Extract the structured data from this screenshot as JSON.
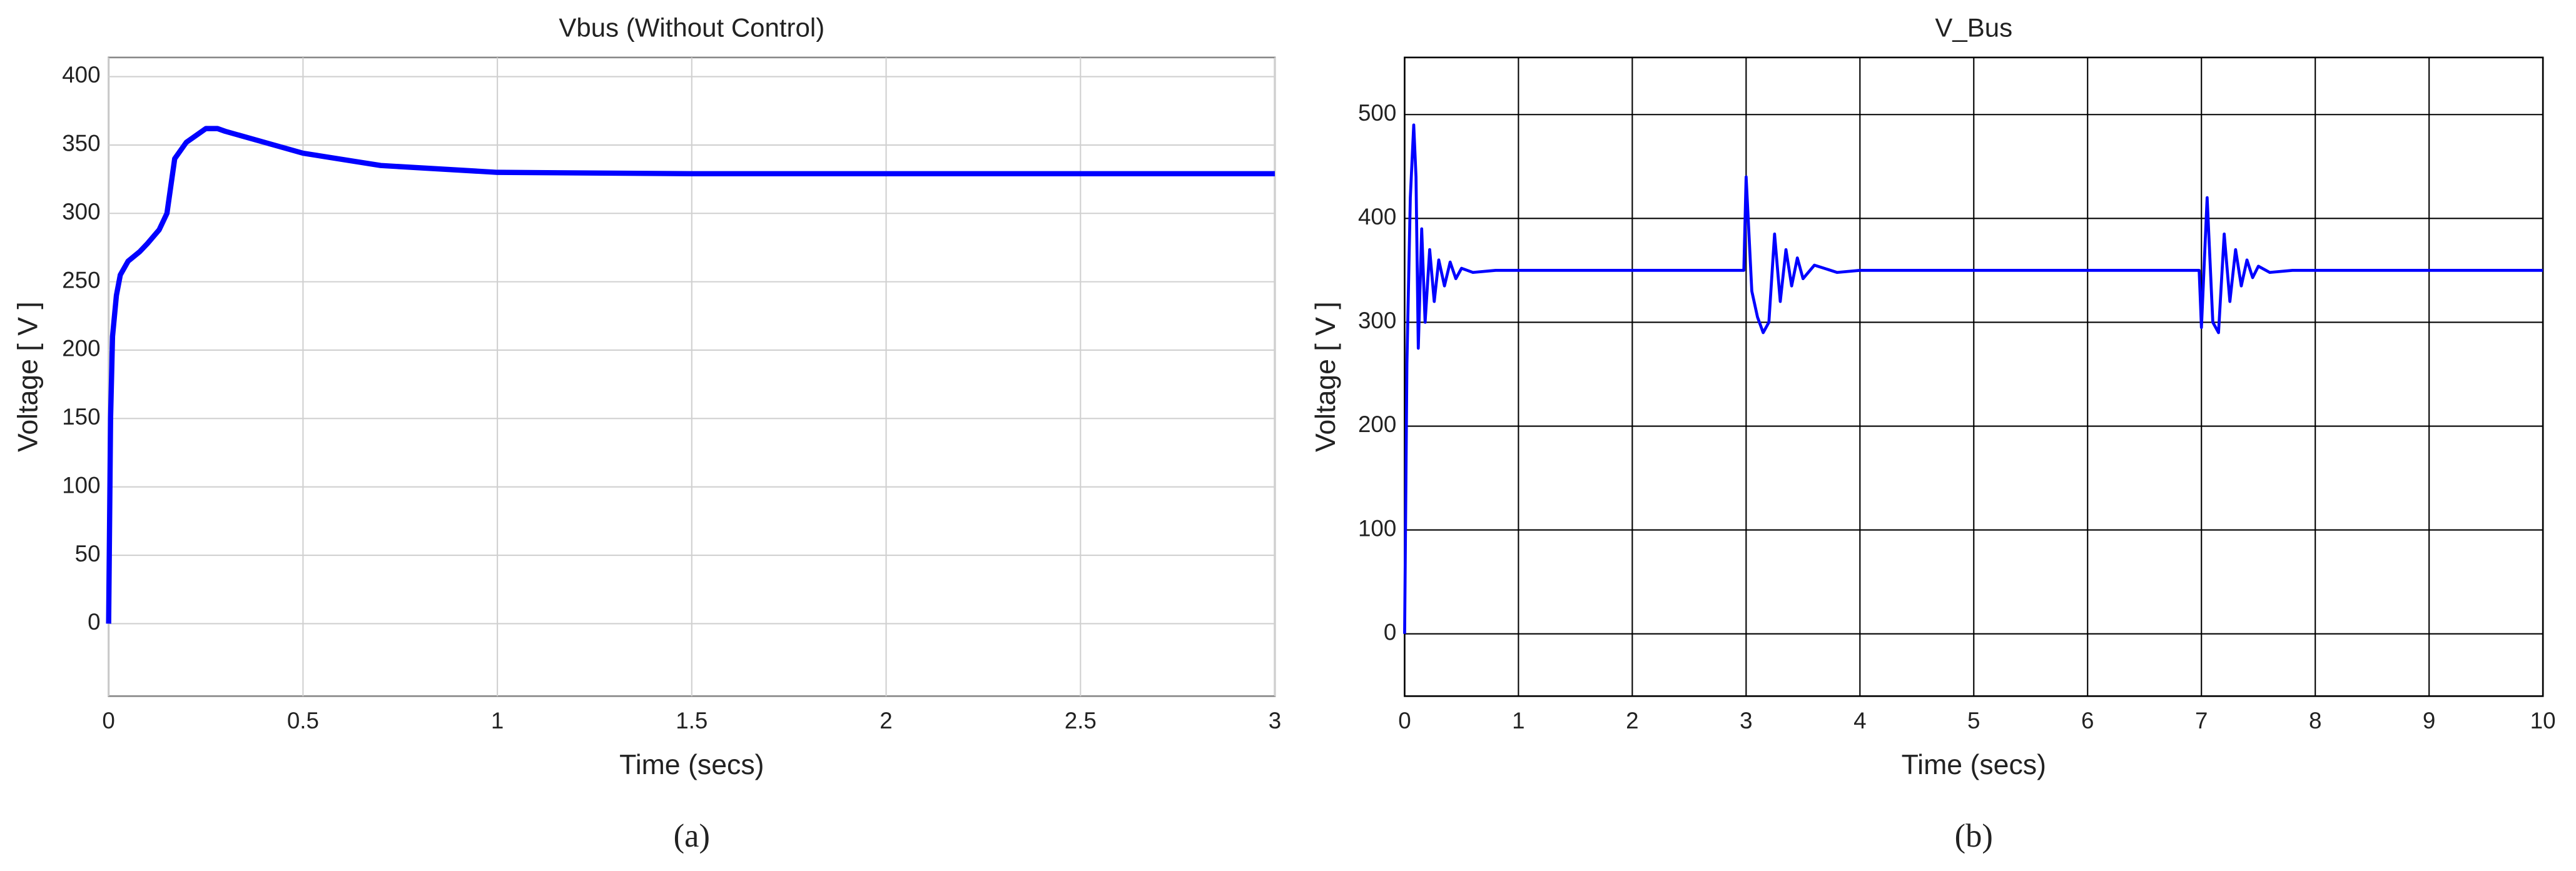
{
  "chart_data": [
    {
      "type": "line",
      "title": "Vbus (Without Control)",
      "xlabel": "Time (secs)",
      "ylabel": "Voltage [ V ]",
      "caption": "(a)",
      "x": [
        0,
        0.005,
        0.01,
        0.02,
        0.03,
        0.05,
        0.08,
        0.1,
        0.13,
        0.15,
        0.17,
        0.2,
        0.25,
        0.28,
        0.3,
        0.4,
        0.5,
        0.7,
        1,
        1.5,
        2,
        2.5,
        3
      ],
      "values": [
        0,
        150,
        210,
        240,
        255,
        265,
        272,
        278,
        288,
        300,
        340,
        352,
        362,
        362,
        360,
        352,
        344,
        335,
        330,
        329,
        329,
        329,
        329
      ],
      "color": "#0000ff",
      "xlim": [
        0,
        3
      ],
      "ylim": [
        -53,
        414
      ],
      "xticks": [
        0,
        0.5,
        1,
        1.5,
        2,
        2.5,
        3
      ],
      "yticks": [
        0,
        50,
        100,
        150,
        200,
        250,
        300,
        350,
        400
      ],
      "grid": true,
      "grid_color": "#d0d0d0"
    },
    {
      "type": "line",
      "title": "V_Bus",
      "xlabel": "Time (secs)",
      "ylabel": "Voltage [ V ]",
      "caption": "(b)",
      "x": [
        0,
        0.02,
        0.05,
        0.08,
        0.1,
        0.12,
        0.15,
        0.18,
        0.22,
        0.26,
        0.3,
        0.35,
        0.4,
        0.45,
        0.5,
        0.6,
        0.8,
        1,
        2,
        2.98,
        3,
        3.05,
        3.1,
        3.15,
        3.2,
        3.25,
        3.3,
        3.35,
        3.4,
        3.45,
        3.5,
        3.6,
        3.8,
        4,
        5,
        6,
        6.98,
        7,
        7.05,
        7.1,
        7.15,
        7.2,
        7.25,
        7.3,
        7.35,
        7.4,
        7.45,
        7.5,
        7.6,
        7.8,
        8,
        9,
        10
      ],
      "values": [
        0,
        260,
        420,
        490,
        440,
        275,
        390,
        300,
        370,
        320,
        360,
        335,
        358,
        342,
        352,
        348,
        350,
        350,
        350,
        350,
        440,
        330,
        305,
        290,
        300,
        385,
        320,
        370,
        335,
        362,
        342,
        355,
        348,
        350,
        350,
        350,
        350,
        295,
        420,
        300,
        290,
        385,
        320,
        370,
        335,
        360,
        343,
        354,
        348,
        350,
        350,
        350,
        350
      ],
      "color": "#0000ff",
      "xlim": [
        0,
        10
      ],
      "ylim": [
        -60,
        555
      ],
      "xticks": [
        0,
        1,
        2,
        3,
        4,
        5,
        6,
        7,
        8,
        9,
        10
      ],
      "yticks": [
        0,
        100,
        200,
        300,
        400,
        500
      ],
      "grid": true,
      "grid_color": "#000000"
    }
  ]
}
